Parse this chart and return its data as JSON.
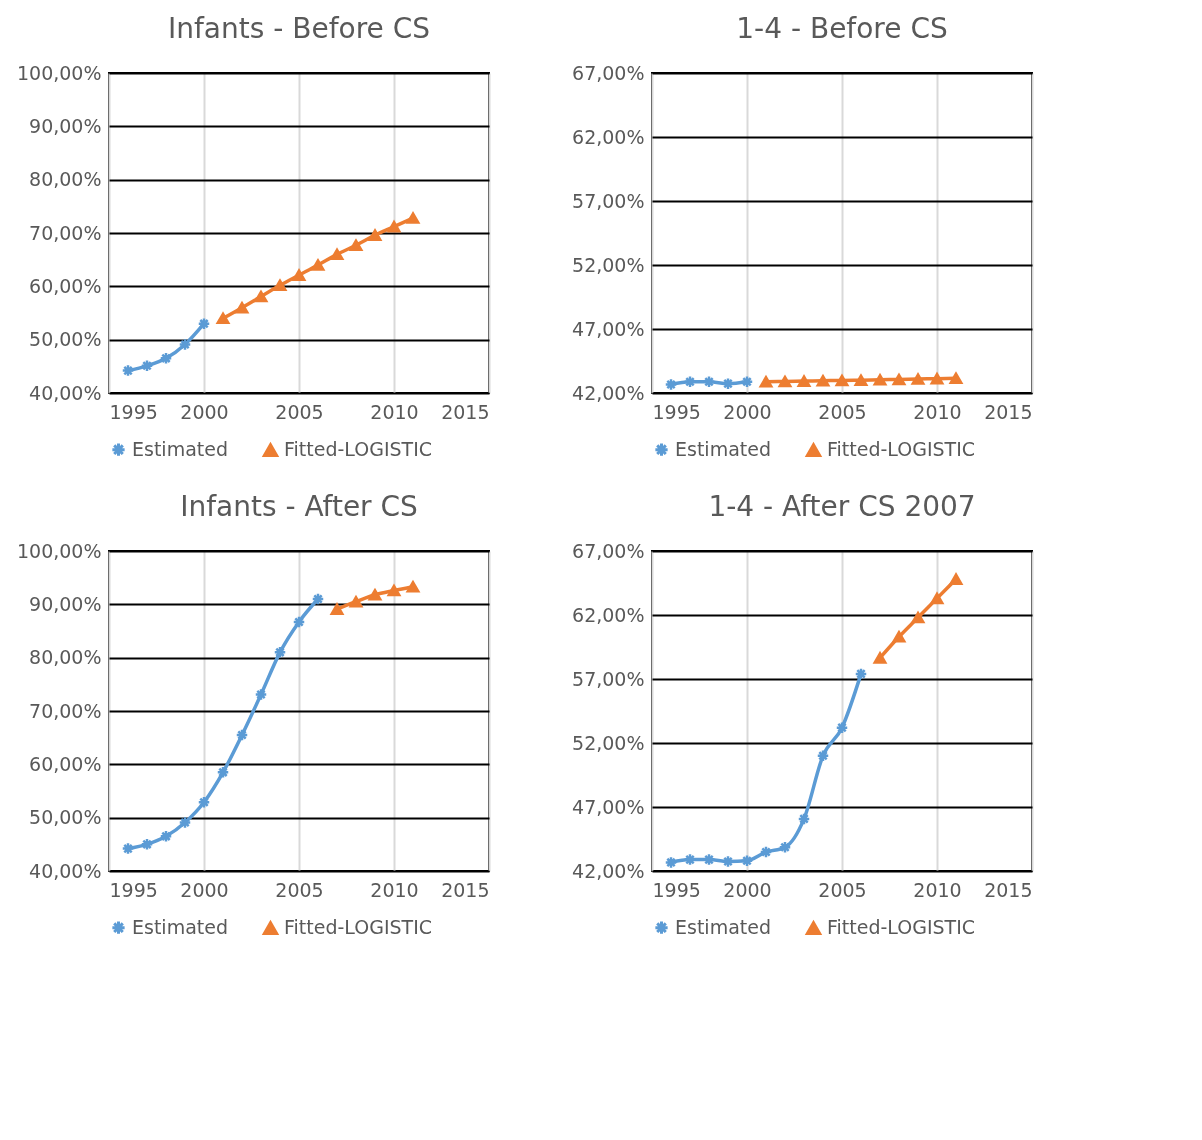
{
  "chart_data": [
    {
      "type": "line",
      "title": "Infants - Before CS",
      "xlim": [
        1995,
        2015
      ],
      "xticks": [
        1995,
        2000,
        2005,
        2010,
        2015
      ],
      "ylim": [
        40,
        100
      ],
      "yticks": [
        {
          "value": 40,
          "label": "40,00%"
        },
        {
          "value": 50,
          "label": "50,00%"
        },
        {
          "value": 60,
          "label": "60,00%"
        },
        {
          "value": 70,
          "label": "70,00%"
        },
        {
          "value": 80,
          "label": "80,00%"
        },
        {
          "value": 90,
          "label": "90,00%"
        },
        {
          "value": 100,
          "label": "100,00%"
        }
      ],
      "grid": true,
      "legend": "bottom",
      "line_style": "solid",
      "series": [
        {
          "name": "Estimated",
          "color": "#5b9bd5",
          "marker": "cross",
          "x": [
            1996,
            1997,
            1998,
            1999,
            2000
          ],
          "values": [
            44.2,
            45.1,
            46.5,
            49.1,
            53.0
          ]
        },
        {
          "name": "Fitted-LOGISTIC",
          "color": "#ed7d31",
          "marker": "triangle",
          "x": [
            2001,
            2002,
            2003,
            2004,
            2005,
            2006,
            2007,
            2008,
            2009,
            2010,
            2011
          ],
          "values": [
            54.0,
            56.0,
            58.1,
            60.2,
            62.1,
            64.0,
            66.0,
            67.7,
            69.6,
            71.2,
            72.8
          ]
        }
      ]
    },
    {
      "type": "line",
      "title": "1-4 - Before CS",
      "xlim": [
        1995,
        2015
      ],
      "xticks": [
        1995,
        2000,
        2005,
        2010,
        2015
      ],
      "ylim": [
        42,
        67
      ],
      "yticks": [
        {
          "value": 42,
          "label": "42,00%"
        },
        {
          "value": 47,
          "label": "47,00%"
        },
        {
          "value": 52,
          "label": "52,00%"
        },
        {
          "value": 57,
          "label": "57,00%"
        },
        {
          "value": 62,
          "label": "62,00%"
        },
        {
          "value": 67,
          "label": "67,00%"
        }
      ],
      "grid": true,
      "legend": "bottom",
      "line_style": "solid",
      "series": [
        {
          "name": "Estimated",
          "color": "#5b9bd5",
          "marker": "cross",
          "x": [
            1996,
            1997,
            1998,
            1999,
            2000
          ],
          "values": [
            42.66,
            42.88,
            42.88,
            42.73,
            42.88
          ]
        },
        {
          "name": "Fitted-LOGISTIC",
          "color": "#ed7d31",
          "marker": "triangle",
          "x": [
            2001,
            2002,
            2003,
            2004,
            2005,
            2006,
            2007,
            2008,
            2009,
            2010,
            2011
          ],
          "values": [
            42.88,
            42.9,
            42.93,
            42.96,
            42.98,
            43.0,
            43.03,
            43.06,
            43.09,
            43.12,
            43.15
          ]
        }
      ]
    },
    {
      "type": "line",
      "title": "Infants - After CS",
      "xlim": [
        1995,
        2015
      ],
      "xticks": [
        1995,
        2000,
        2005,
        2010,
        2015
      ],
      "ylim": [
        40,
        100
      ],
      "yticks": [
        {
          "value": 40,
          "label": "40,00%"
        },
        {
          "value": 50,
          "label": "50,00%"
        },
        {
          "value": 60,
          "label": "60,00%"
        },
        {
          "value": 70,
          "label": "70,00%"
        },
        {
          "value": 80,
          "label": "80,00%"
        },
        {
          "value": 90,
          "label": "90,00%"
        },
        {
          "value": 100,
          "label": "100,00%"
        }
      ],
      "grid": true,
      "legend": "bottom",
      "line_style": "solid",
      "series": [
        {
          "name": "Estimated",
          "color": "#5b9bd5",
          "marker": "cross",
          "x": [
            1996,
            1997,
            1998,
            1999,
            2000,
            2001,
            2002,
            2003,
            2004,
            2005,
            2006
          ],
          "values": [
            44.2,
            45.0,
            46.5,
            49.1,
            52.9,
            58.5,
            65.5,
            73.1,
            81.0,
            86.7,
            91.0
          ]
        },
        {
          "name": "Fitted-LOGISTIC",
          "color": "#ed7d31",
          "marker": "triangle",
          "x": [
            2007,
            2008,
            2009,
            2010,
            2011
          ],
          "values": [
            89.1,
            90.5,
            91.8,
            92.6,
            93.3
          ]
        }
      ]
    },
    {
      "type": "line",
      "title": "1-4 - After CS 2007",
      "xlim": [
        1995,
        2015
      ],
      "xticks": [
        1995,
        2000,
        2005,
        2010,
        2015
      ],
      "ylim": [
        42,
        67
      ],
      "yticks": [
        {
          "value": 42,
          "label": "42,00%"
        },
        {
          "value": 47,
          "label": "47,00%"
        },
        {
          "value": 52,
          "label": "52,00%"
        },
        {
          "value": 57,
          "label": "57,00%"
        },
        {
          "value": 62,
          "label": "62,00%"
        },
        {
          "value": 67,
          "label": "67,00%"
        }
      ],
      "grid": true,
      "legend": "bottom",
      "line_style": "solid",
      "series": [
        {
          "name": "Estimated",
          "color": "#5b9bd5",
          "marker": "cross",
          "x": [
            1996,
            1997,
            1998,
            1999,
            2000,
            2001,
            2002,
            2003,
            2004,
            2005,
            2006
          ],
          "values": [
            42.67,
            42.89,
            42.89,
            42.74,
            42.8,
            43.48,
            43.85,
            46.07,
            51.0,
            53.2,
            57.4
          ]
        },
        {
          "name": "Fitted-LOGISTIC",
          "color": "#ed7d31",
          "marker": "triangle",
          "x": [
            2007,
            2008,
            2009,
            2010,
            2011
          ],
          "values": [
            58.65,
            60.3,
            61.8,
            63.3,
            64.8
          ]
        }
      ]
    }
  ]
}
